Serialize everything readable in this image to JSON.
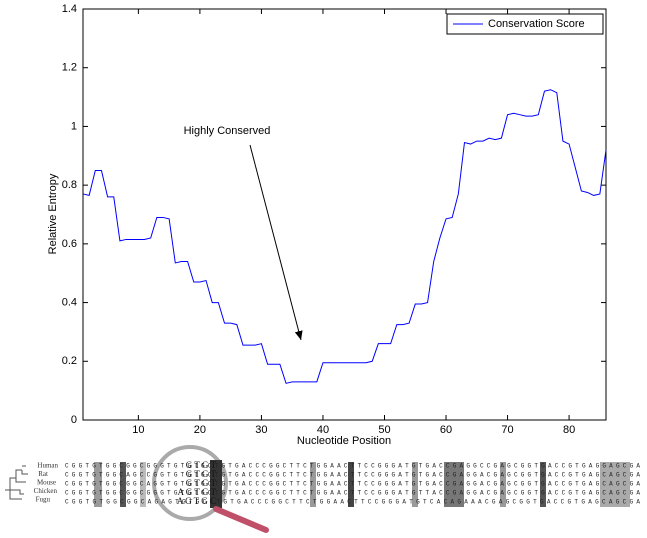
{
  "chart_data": {
    "type": "line",
    "xlabel": "Nucleotide Position",
    "ylabel": "Relative Entropy",
    "annotation": "Highly Conserved",
    "x": [
      1,
      2,
      3,
      4,
      5,
      6,
      7,
      8,
      9,
      10,
      11,
      12,
      13,
      14,
      15,
      16,
      17,
      18,
      19,
      20,
      21,
      22,
      23,
      24,
      25,
      26,
      27,
      28,
      29,
      30,
      31,
      32,
      33,
      34,
      35,
      36,
      37,
      38,
      39,
      40,
      41,
      42,
      43,
      44,
      45,
      46,
      47,
      48,
      49,
      50,
      51,
      52,
      53,
      54,
      55,
      56,
      57,
      58,
      59,
      60,
      61,
      62,
      63,
      64,
      65,
      66,
      67,
      68,
      69,
      70,
      71,
      72,
      73,
      74,
      75,
      76,
      77,
      78,
      79,
      80,
      81,
      82,
      83,
      84,
      85,
      86
    ],
    "series": [
      {
        "name": "Conservation Score",
        "color": "#0000ff",
        "values": [
          0.77,
          0.765,
          0.85,
          0.85,
          0.76,
          0.76,
          0.61,
          0.615,
          0.615,
          0.615,
          0.615,
          0.62,
          0.69,
          0.69,
          0.685,
          0.535,
          0.54,
          0.54,
          0.47,
          0.47,
          0.475,
          0.4,
          0.4,
          0.33,
          0.33,
          0.325,
          0.255,
          0.255,
          0.255,
          0.26,
          0.19,
          0.19,
          0.19,
          0.125,
          0.13,
          0.13,
          0.13,
          0.13,
          0.13,
          0.195,
          0.195,
          0.195,
          0.195,
          0.195,
          0.195,
          0.195,
          0.195,
          0.2,
          0.26,
          0.26,
          0.26,
          0.325,
          0.325,
          0.33,
          0.395,
          0.395,
          0.4,
          0.54,
          0.62,
          0.685,
          0.69,
          0.77,
          0.945,
          0.94,
          0.95,
          0.95,
          0.96,
          0.955,
          0.96,
          1.04,
          1.045,
          1.04,
          1.035,
          1.035,
          1.04,
          1.12,
          1.125,
          1.115,
          0.95,
          0.94,
          0.86,
          0.78,
          0.775,
          0.765,
          0.77,
          0.92
        ]
      }
    ],
    "xlim": [
      1,
      86
    ],
    "xticks": [
      10,
      20,
      30,
      40,
      50,
      60,
      70,
      80
    ],
    "ylim": [
      0,
      1.4
    ],
    "yticks": [
      0,
      0.2,
      0.4,
      0.6,
      0.8,
      1,
      1.2,
      1.4
    ],
    "legend": "top-right"
  },
  "alignment": {
    "species": [
      "Human",
      "Rat",
      "Mouse",
      "Chicken",
      "Fugu"
    ],
    "sequences": [
      "CGGTGTGGCGGCGGGTGTGTGCTGTGACCCGGCTTCTGGAACTTCCGGGATGTGACCGAGGCCGAGCGGTGACCGTGAGGAGCGA",
      "CGGTGTGGCAGCCGGTGTGTGCTGTGACCCGGCTTCTGGAACTTCCGGGATGTGACCGAGGACGAGCGGTGACCGTGAGCAGCGA",
      "CGGTGTGGCGGCAGGTGTGTGCTGTGACCCGGCTTCTGGAACTTCCGGGATGTGACCGAGGACGAGCGGTGACCGTGAGCAGCGA",
      "CGGTGTGGCGGCGGGTGTGTGCTGTGACCCGGCTTCTGGAACTTCCGGGATGTTACCGAGGACGAGCGGTGACCGTGAGCAGCGA",
      "CGGTGTGGCGGCAGAGTGTGCCTGTGACCCGGCTTCTGGAACTTCCGGGATGTCACAGAAACGAGCGGTGACCGTGAGCAGCGA"
    ],
    "magnified": [
      "G T G T",
      "G T G T",
      "G T G T",
      "A G T G T",
      "A G T G C"
    ]
  }
}
